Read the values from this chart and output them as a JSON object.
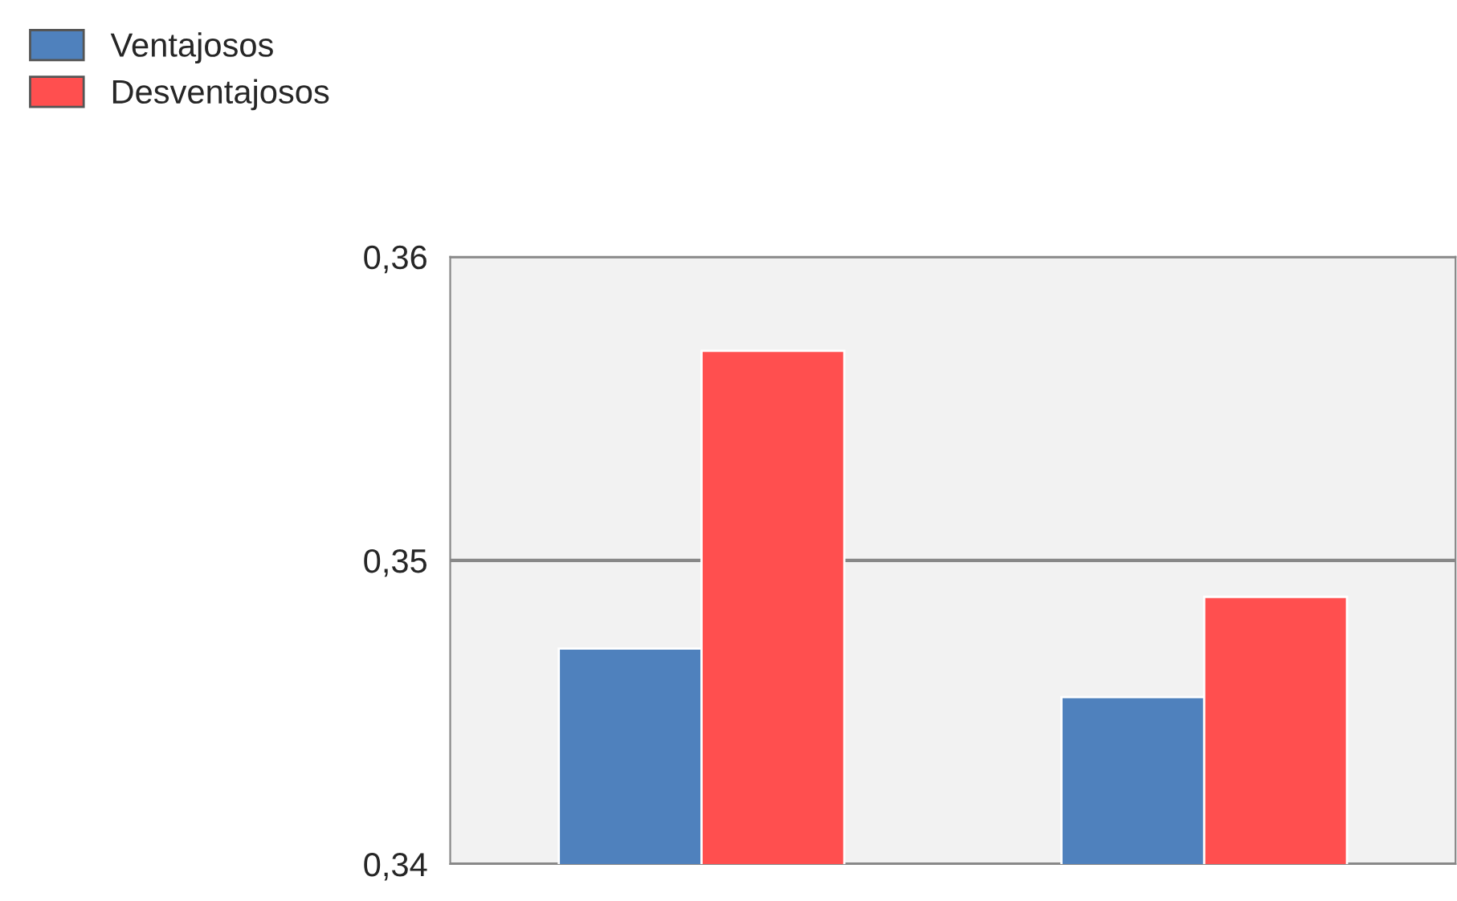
{
  "chart_data": {
    "type": "bar",
    "categories": [
      null,
      null
    ],
    "series": [
      {
        "name": "Ventajosos",
        "color": "#4f81bd",
        "values": [
          0.3471,
          0.3455
        ]
      },
      {
        "name": "Desventajosos",
        "color": "#ff4f4f",
        "values": [
          0.3569,
          0.3488
        ]
      }
    ],
    "ylim": [
      0.34,
      0.36
    ],
    "yticks": [
      {
        "value": 0.34,
        "label": "0,34"
      },
      {
        "value": 0.35,
        "label": "0,35"
      },
      {
        "value": 0.36,
        "label": "0,36"
      }
    ],
    "grid": "y",
    "legend": "top left"
  }
}
